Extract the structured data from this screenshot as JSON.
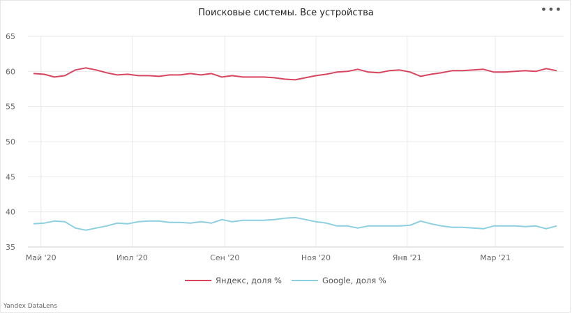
{
  "header": {
    "title": "Поисковые системы. Все устройства",
    "menu_icon": "more-dots-icon"
  },
  "footer": {
    "brand": "Yandex DataLens"
  },
  "chart_data": {
    "type": "line",
    "title": "Поисковые системы. Все устройства",
    "xlabel": "",
    "ylabel": "",
    "ylim": [
      35,
      65
    ],
    "yticks": [
      35,
      40,
      45,
      50,
      55,
      60,
      65
    ],
    "xticks": [
      "Май '20",
      "Июл '20",
      "Сен '20",
      "Ноя '20",
      "Янв '21",
      "Мар '21"
    ],
    "grid": true,
    "legend_position": "bottom",
    "x": [
      "2020-04-26",
      "2020-05-03",
      "2020-05-10",
      "2020-05-17",
      "2020-05-24",
      "2020-05-31",
      "2020-06-07",
      "2020-06-14",
      "2020-06-21",
      "2020-06-28",
      "2020-07-05",
      "2020-07-12",
      "2020-07-19",
      "2020-07-26",
      "2020-08-02",
      "2020-08-09",
      "2020-08-16",
      "2020-08-23",
      "2020-08-30",
      "2020-09-06",
      "2020-09-13",
      "2020-09-20",
      "2020-09-27",
      "2020-10-04",
      "2020-10-11",
      "2020-10-18",
      "2020-10-25",
      "2020-11-01",
      "2020-11-08",
      "2020-11-15",
      "2020-11-22",
      "2020-11-29",
      "2020-12-06",
      "2020-12-13",
      "2020-12-20",
      "2020-12-27",
      "2021-01-03",
      "2021-01-10",
      "2021-01-17",
      "2021-01-24",
      "2021-01-31",
      "2021-02-07",
      "2021-02-14",
      "2021-02-21",
      "2021-02-28",
      "2021-03-07",
      "2021-03-14",
      "2021-03-21",
      "2021-03-28",
      "2021-04-04",
      "2021-04-11"
    ],
    "series": [
      {
        "name": "Яндекс, доля %",
        "color": "#d9455f",
        "values": [
          59.7,
          59.6,
          59.2,
          59.4,
          60.2,
          60.5,
          60.2,
          59.8,
          59.5,
          59.6,
          59.4,
          59.4,
          59.3,
          59.5,
          59.5,
          59.7,
          59.5,
          59.7,
          59.2,
          59.4,
          59.2,
          59.2,
          59.2,
          59.1,
          58.9,
          58.8,
          59.1,
          59.4,
          59.6,
          59.9,
          60.0,
          60.3,
          59.9,
          59.8,
          60.1,
          60.2,
          59.9,
          59.3,
          59.6,
          59.8,
          60.1,
          60.1,
          60.2,
          60.3,
          59.9,
          59.9,
          60.0,
          60.1,
          60.0,
          60.4,
          60.1
        ]
      },
      {
        "name": "Google, доля %",
        "color": "#8ccfe0",
        "values": [
          38.3,
          38.4,
          38.7,
          38.6,
          37.7,
          37.4,
          37.7,
          38.0,
          38.4,
          38.3,
          38.6,
          38.7,
          38.7,
          38.5,
          38.5,
          38.4,
          38.6,
          38.4,
          38.9,
          38.6,
          38.8,
          38.8,
          38.8,
          38.9,
          39.1,
          39.2,
          38.9,
          38.6,
          38.4,
          38.0,
          38.0,
          37.7,
          38.0,
          38.0,
          38.0,
          38.0,
          38.1,
          38.7,
          38.3,
          38.0,
          37.8,
          37.8,
          37.7,
          37.6,
          38.0,
          38.0,
          38.0,
          37.9,
          38.0,
          37.6,
          38.0
        ]
      }
    ]
  }
}
